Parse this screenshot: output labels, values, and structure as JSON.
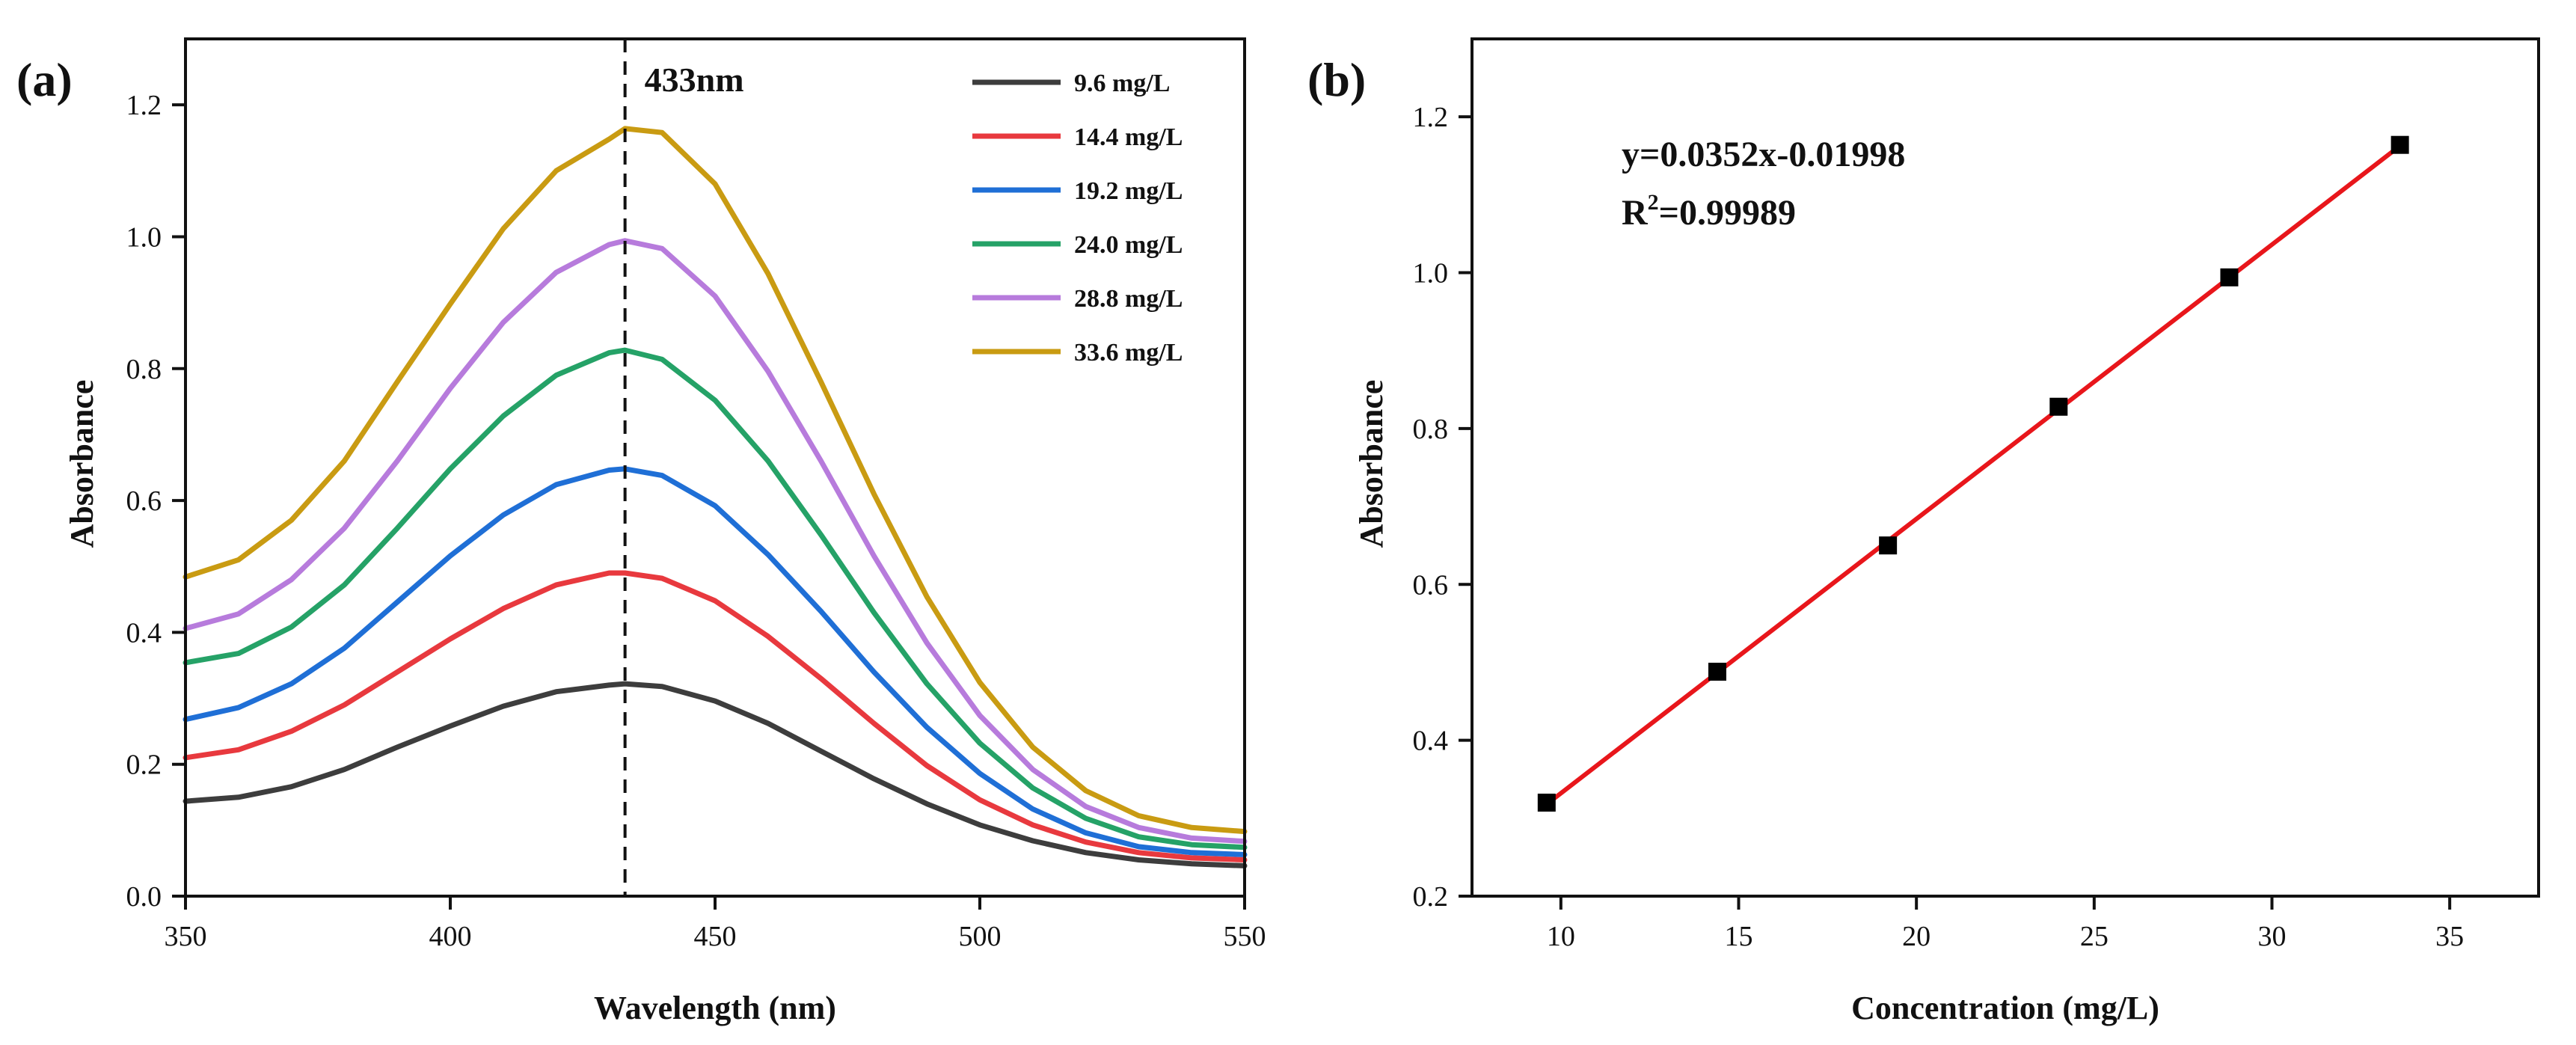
{
  "colors": {
    "axis": "#111111",
    "fit_line": "#e8161b",
    "marker": "#000000",
    "series": [
      "#3d3d3d",
      "#e8393e",
      "#1f6fd6",
      "#25a267",
      "#b77bdc",
      "#c99b12"
    ]
  },
  "chart_data": [
    {
      "panel": "(a)",
      "type": "line",
      "title": "",
      "xlabel": "Wavelength (nm)",
      "ylabel": "Absorbance",
      "xlim": [
        350,
        550
      ],
      "ylim": [
        0.0,
        1.3
      ],
      "xticks": [
        "350",
        "400",
        "450",
        "500",
        "550"
      ],
      "yticks": [
        "0.0",
        "0.2",
        "0.4",
        "0.6",
        "0.8",
        "1.0",
        "1.2"
      ],
      "legend_position": "top-right",
      "annotation": {
        "text": "433nm",
        "x": 433
      },
      "x": [
        350,
        360,
        370,
        380,
        390,
        400,
        410,
        420,
        430,
        433,
        440,
        450,
        460,
        470,
        480,
        490,
        500,
        510,
        520,
        530,
        540,
        550
      ],
      "series": [
        {
          "name": "9.6 mg/L",
          "values": [
            0.144,
            0.15,
            0.166,
            0.192,
            0.226,
            0.258,
            0.288,
            0.31,
            0.32,
            0.322,
            0.318,
            0.296,
            0.262,
            0.22,
            0.178,
            0.14,
            0.108,
            0.084,
            0.066,
            0.055,
            0.049,
            0.046
          ]
        },
        {
          "name": "14.4 mg/L",
          "values": [
            0.21,
            0.222,
            0.25,
            0.29,
            0.34,
            0.39,
            0.436,
            0.472,
            0.49,
            0.49,
            0.482,
            0.448,
            0.394,
            0.33,
            0.262,
            0.198,
            0.146,
            0.108,
            0.082,
            0.066,
            0.058,
            0.055
          ]
        },
        {
          "name": "19.2 mg/L",
          "values": [
            0.268,
            0.286,
            0.322,
            0.376,
            0.446,
            0.516,
            0.578,
            0.624,
            0.646,
            0.648,
            0.638,
            0.592,
            0.518,
            0.432,
            0.34,
            0.256,
            0.186,
            0.132,
            0.096,
            0.075,
            0.066,
            0.063
          ]
        },
        {
          "name": "24.0 mg/L",
          "values": [
            0.354,
            0.368,
            0.408,
            0.472,
            0.558,
            0.648,
            0.728,
            0.79,
            0.824,
            0.828,
            0.814,
            0.752,
            0.66,
            0.548,
            0.43,
            0.322,
            0.232,
            0.164,
            0.118,
            0.09,
            0.078,
            0.074
          ]
        },
        {
          "name": "28.8 mg/L",
          "values": [
            0.406,
            0.428,
            0.48,
            0.558,
            0.66,
            0.77,
            0.87,
            0.946,
            0.988,
            0.994,
            0.982,
            0.91,
            0.796,
            0.66,
            0.516,
            0.384,
            0.274,
            0.192,
            0.136,
            0.104,
            0.088,
            0.083
          ]
        },
        {
          "name": "33.6 mg/L",
          "values": [
            0.484,
            0.51,
            0.57,
            0.66,
            0.78,
            0.898,
            1.012,
            1.1,
            1.148,
            1.164,
            1.158,
            1.08,
            0.944,
            0.78,
            0.61,
            0.454,
            0.324,
            0.226,
            0.16,
            0.122,
            0.104,
            0.098
          ]
        }
      ]
    },
    {
      "panel": "(b)",
      "type": "scatter",
      "title": "",
      "xlabel": "Concentration (mg/L)",
      "ylabel": "Absorbance",
      "xlim": [
        7.5,
        37.5
      ],
      "ylim": [
        0.2,
        1.3
      ],
      "xticks": [
        "10",
        "15",
        "20",
        "25",
        "30",
        "35"
      ],
      "yticks": [
        "0.2",
        "0.4",
        "0.6",
        "0.8",
        "1.0",
        "1.2"
      ],
      "equation": "y=0.0352x-0.01998",
      "r_squared_label": "R",
      "r_squared_exponent": "2",
      "r_squared_value": "=0.99989",
      "fit": {
        "slope": 0.0352,
        "intercept": -0.01998,
        "x_range": [
          9.6,
          33.6
        ]
      },
      "x": [
        9.6,
        14.4,
        19.2,
        24.0,
        28.8,
        33.6
      ],
      "values": [
        0.32,
        0.488,
        0.65,
        0.828,
        0.994,
        1.164
      ]
    }
  ]
}
